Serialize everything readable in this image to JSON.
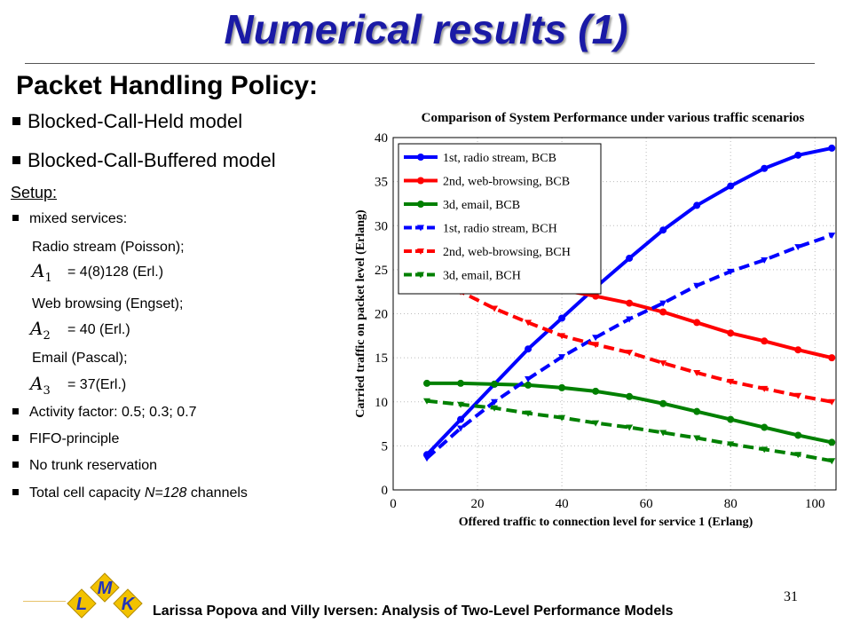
{
  "slide": {
    "title": "Numerical results (1)",
    "subtitle": "Packet Handling Policy:",
    "models": [
      "Blocked-Call-Held model",
      "Blocked-Call-Buffered model"
    ],
    "setup_label": "Setup:",
    "mixed_services": "mixed services:",
    "services": [
      {
        "name": "Radio stream (Poisson);",
        "symbol": "A",
        "sub": "1",
        "value": "= 4(8)128 (Erl.)"
      },
      {
        "name": "Web browsing (Engset);",
        "symbol": "A",
        "sub": "2",
        "value": "= 40 (Erl.)"
      },
      {
        "name": "Email (Pascal);",
        "symbol": "A",
        "sub": "3",
        "value": "= 37(Erl.)"
      }
    ],
    "bullets": [
      "Activity factor: 0.5; 0.3; 0.7",
      "FIFO-principle",
      "No trunk reservation"
    ],
    "capacity": {
      "prefix": "Total cell capacity ",
      "italic": "N=128",
      "suffix": " channels"
    },
    "footer": "Larissa Popova and Villy Iversen: Analysis of Two-Level Performance Models",
    "page_number": "31",
    "logo_letters": [
      "L",
      "M",
      "K"
    ]
  },
  "colors": {
    "title": "#1a1aa6",
    "blue": "#0000ff",
    "red": "#ff0000",
    "green": "#008000",
    "logo_gold": "#f2c200",
    "logo_blue": "#2233bb"
  },
  "chart_data": {
    "type": "line",
    "title": "Comparison of System Performance under various traffic scenarios",
    "xlabel": "Offered traffic to connection level for service 1 (Erlang)",
    "ylabel": "Carried traffic on packet level (Erlang)",
    "xlim": [
      0,
      105
    ],
    "ylim": [
      0,
      40
    ],
    "xticks": [
      0,
      20,
      40,
      60,
      80,
      100
    ],
    "yticks": [
      0,
      5,
      10,
      15,
      20,
      25,
      30,
      35,
      40
    ],
    "grid": true,
    "legend_position": "top-left",
    "x": [
      8,
      16,
      24,
      32,
      40,
      48,
      56,
      64,
      72,
      80,
      88,
      96,
      104
    ],
    "series": [
      {
        "name": "1st, radio stream, BCB",
        "color": "#0000ff",
        "style": "solid",
        "values": [
          4.0,
          8.0,
          12.0,
          16.0,
          19.5,
          23.0,
          26.3,
          29.5,
          32.3,
          34.5,
          36.5,
          38.0,
          38.8
        ]
      },
      {
        "name": "2nd, web-browsing, BCB",
        "color": "#ff0000",
        "style": "solid",
        "values": [
          26.5,
          25.5,
          24.5,
          23.5,
          22.7,
          22.0,
          21.2,
          20.2,
          19.0,
          17.8,
          16.9,
          15.9,
          15.0
        ]
      },
      {
        "name": "3d, email, BCB",
        "color": "#008000",
        "style": "solid",
        "values": [
          12.1,
          12.1,
          12.0,
          11.9,
          11.6,
          11.2,
          10.6,
          9.8,
          8.9,
          8.0,
          7.1,
          6.2,
          5.4
        ]
      },
      {
        "name": "1st, radio stream, BCH",
        "color": "#0000ff",
        "style": "dashed",
        "values": [
          3.6,
          7.0,
          10.0,
          12.6,
          15.1,
          17.3,
          19.4,
          21.2,
          23.2,
          24.8,
          26.1,
          27.6,
          28.9
        ]
      },
      {
        "name": "2nd, web-browsing, BCH",
        "color": "#ff0000",
        "style": "dashed",
        "values": [
          24.5,
          22.5,
          20.6,
          19.0,
          17.5,
          16.5,
          15.6,
          14.4,
          13.3,
          12.3,
          11.5,
          10.7,
          10.0
        ]
      },
      {
        "name": "3d, email, BCH",
        "color": "#008000",
        "style": "dashed",
        "values": [
          10.1,
          9.7,
          9.3,
          8.7,
          8.2,
          7.6,
          7.1,
          6.5,
          5.9,
          5.2,
          4.6,
          4.0,
          3.3
        ]
      }
    ]
  }
}
